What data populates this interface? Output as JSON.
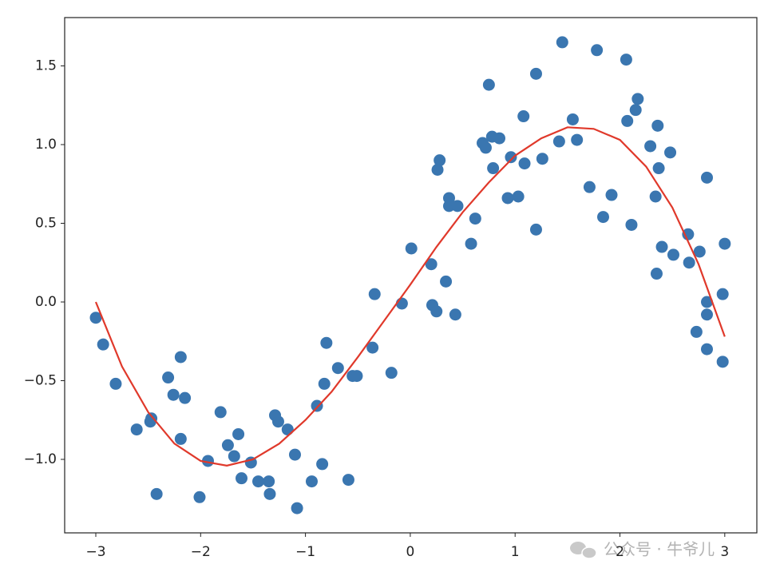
{
  "chart_data": {
    "type": "scatter",
    "color": "#3a76b0",
    "x": [
      -3.0,
      -2.93,
      -2.81,
      -2.61,
      -2.48,
      -2.47,
      -2.42,
      -2.31,
      -2.26,
      -2.19,
      -2.19,
      -2.15,
      -2.01,
      -1.93,
      -1.81,
      -1.74,
      -1.68,
      -1.64,
      -1.61,
      -1.52,
      -1.45,
      -1.35,
      -1.34,
      -1.29,
      -1.26,
      -1.17,
      -1.1,
      -1.08,
      -0.94,
      -0.89,
      -0.84,
      -0.82,
      -0.8,
      -0.69,
      -0.59,
      -0.55,
      -0.51,
      -0.36,
      -0.34,
      -0.18,
      -0.08,
      0.01,
      0.2,
      0.21,
      0.25,
      0.26,
      0.28,
      0.34,
      0.37,
      0.37,
      0.43,
      0.45,
      0.58,
      0.62,
      0.69,
      0.72,
      0.75,
      0.78,
      0.79,
      0.85,
      0.93,
      0.96,
      1.03,
      1.08,
      1.09,
      1.2,
      1.2,
      1.26,
      1.42,
      1.45,
      1.55,
      1.59,
      1.71,
      1.78,
      1.84,
      1.92,
      2.06,
      2.07,
      2.11,
      2.15,
      2.17,
      2.29,
      2.34,
      2.35,
      2.36,
      2.37,
      2.4,
      2.48,
      2.51,
      2.65,
      2.66,
      2.73,
      2.76,
      2.83,
      2.83,
      2.83,
      2.83,
      2.98,
      2.98,
      3.0
    ],
    "values": [
      -0.1,
      -0.27,
      -0.52,
      -0.81,
      -0.76,
      -0.74,
      -1.22,
      -0.48,
      -0.59,
      -0.35,
      -0.87,
      -0.61,
      -1.24,
      -1.01,
      -0.7,
      -0.91,
      -0.98,
      -0.84,
      -1.12,
      -1.02,
      -1.14,
      -1.14,
      -1.22,
      -0.72,
      -0.76,
      -0.81,
      -0.97,
      -1.31,
      -1.14,
      -0.66,
      -1.03,
      -0.52,
      -0.26,
      -0.42,
      -1.13,
      -0.47,
      -0.47,
      -0.29,
      0.05,
      -0.45,
      -0.01,
      0.34,
      0.24,
      -0.02,
      -0.06,
      0.84,
      0.9,
      0.13,
      0.66,
      0.61,
      -0.08,
      0.61,
      0.37,
      0.53,
      1.01,
      0.98,
      1.38,
      1.05,
      0.85,
      1.04,
      0.66,
      0.92,
      0.67,
      1.18,
      0.88,
      1.45,
      0.46,
      0.91,
      1.02,
      1.65,
      1.16,
      1.03,
      0.73,
      1.6,
      0.54,
      0.68,
      1.54,
      1.15,
      0.49,
      1.22,
      1.29,
      0.99,
      0.67,
      0.18,
      1.12,
      0.85,
      0.35,
      0.95,
      0.3,
      0.43,
      0.25,
      -0.19,
      0.32,
      0.79,
      -0.3,
      0.0,
      -0.08,
      0.05,
      -0.38,
      0.37
    ],
    "fit": {
      "type": "line",
      "color": "#e0392b",
      "x": [
        -3,
        -2.75,
        -2.5,
        -2.25,
        -2,
        -1.75,
        -1.5,
        -1.25,
        -1,
        -0.75,
        -0.5,
        -0.25,
        0,
        0.25,
        0.5,
        0.75,
        1,
        1.25,
        1.5,
        1.75,
        2,
        2.25,
        2.5,
        2.75,
        3
      ],
      "values": [
        0,
        -0.41,
        -0.7,
        -0.9,
        -1.01,
        -1.04,
        -1.0,
        -0.9,
        -0.75,
        -0.57,
        -0.35,
        -0.12,
        0.11,
        0.35,
        0.57,
        0.76,
        0.93,
        1.04,
        1.11,
        1.1,
        1.03,
        0.86,
        0.6,
        0.24,
        -0.22
      ]
    },
    "xlim": [
      -3.297,
      3.306
    ],
    "ylim": [
      -1.467,
      1.807
    ],
    "xticks": [
      {
        "value": -3,
        "label": "−3"
      },
      {
        "value": -2,
        "label": "−2"
      },
      {
        "value": -1,
        "label": "−1"
      },
      0,
      1,
      2,
      3
    ],
    "yticks": [
      {
        "value": -1,
        "label": "−1.0"
      },
      {
        "value": -0.5,
        "label": "−0.5"
      },
      {
        "value": 0,
        "label": "0.0"
      },
      {
        "value": 0.5,
        "label": "0.5"
      },
      {
        "value": 1,
        "label": "1.0"
      },
      {
        "value": 1.5,
        "label": "1.5"
      }
    ]
  },
  "watermark": "公众号 · 牛爷儿"
}
